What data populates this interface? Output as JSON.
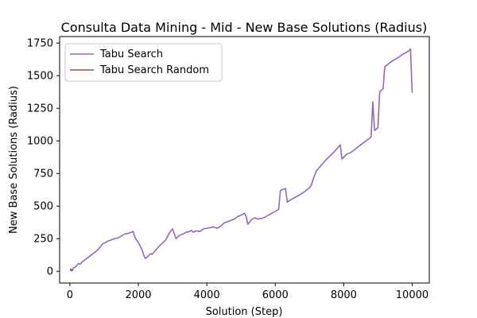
{
  "chart_data": {
    "type": "line",
    "title": "Consulta Data Mining - Mid - New Base Solutions (Radius)",
    "xlabel": "Solution (Step)",
    "ylabel": "New Base Solutions (Radius)",
    "xlim": [
      -300,
      10500
    ],
    "ylim": [
      -90,
      1800
    ],
    "x_ticks": [
      0,
      2000,
      4000,
      6000,
      8000,
      10000
    ],
    "y_ticks": [
      0,
      250,
      500,
      750,
      1000,
      1250,
      1500,
      1750
    ],
    "grid": false,
    "legend_position": "top-left",
    "series": [
      {
        "name": "Tabu Search",
        "color": "#9467bd",
        "x": [
          0,
          50,
          100,
          150,
          250,
          300,
          350,
          400,
          500,
          600,
          700,
          800,
          900,
          950,
          1000,
          1100,
          1200,
          1300,
          1400,
          1500,
          1600,
          1700,
          1750,
          1800,
          1850,
          1900,
          2000,
          2100,
          2150,
          2200,
          2250,
          2300,
          2350,
          2400,
          2500,
          2600,
          2700,
          2800,
          2900,
          2950,
          3000,
          3100,
          3200,
          3300,
          3400,
          3500,
          3550,
          3600,
          3700,
          3800,
          3900,
          4000,
          4100,
          4200,
          4300,
          4400,
          4500,
          4600,
          4700,
          4800,
          4900,
          5000,
          5100,
          5150,
          5200,
          5300,
          5400,
          5500,
          5600,
          5700,
          5800,
          5900,
          6000,
          6100,
          6150,
          6200,
          6300,
          6350,
          6400,
          6500,
          6600,
          6700,
          6800,
          6900,
          7000,
          7050,
          7100,
          7200,
          7300,
          7400,
          7500,
          7600,
          7700,
          7800,
          7900,
          7950,
          8000,
          8100,
          8200,
          8300,
          8400,
          8500,
          8600,
          8700,
          8800,
          8850,
          8900,
          9000,
          9050,
          9100,
          9150,
          9200,
          9300,
          9400,
          9500,
          9600,
          9700,
          9800,
          9900,
          9950,
          10000
        ],
        "y": [
          20,
          10,
          25,
          30,
          60,
          55,
          70,
          80,
          100,
          120,
          140,
          160,
          190,
          210,
          215,
          230,
          240,
          250,
          255,
          270,
          285,
          290,
          295,
          300,
          305,
          260,
          220,
          170,
          130,
          100,
          105,
          120,
          135,
          130,
          160,
          190,
          215,
          240,
          290,
          310,
          325,
          250,
          275,
          285,
          300,
          305,
          315,
          300,
          310,
          305,
          325,
          330,
          335,
          340,
          330,
          345,
          370,
          380,
          390,
          400,
          420,
          430,
          445,
          420,
          360,
          395,
          410,
          400,
          405,
          415,
          430,
          445,
          460,
          475,
          620,
          625,
          635,
          530,
          540,
          555,
          570,
          585,
          600,
          620,
          640,
          660,
          700,
          770,
          800,
          830,
          860,
          885,
          910,
          940,
          970,
          860,
          875,
          900,
          910,
          930,
          950,
          970,
          990,
          1010,
          1030,
          1300,
          1080,
          1100,
          1375,
          1390,
          1400,
          1570,
          1590,
          1610,
          1625,
          1640,
          1660,
          1675,
          1690,
          1705,
          1370
        ]
      },
      {
        "name": "Tabu Search Random",
        "color": "#8c564b",
        "x": [
          0,
          50,
          100
        ],
        "y": [
          10,
          5,
          12
        ]
      }
    ]
  }
}
